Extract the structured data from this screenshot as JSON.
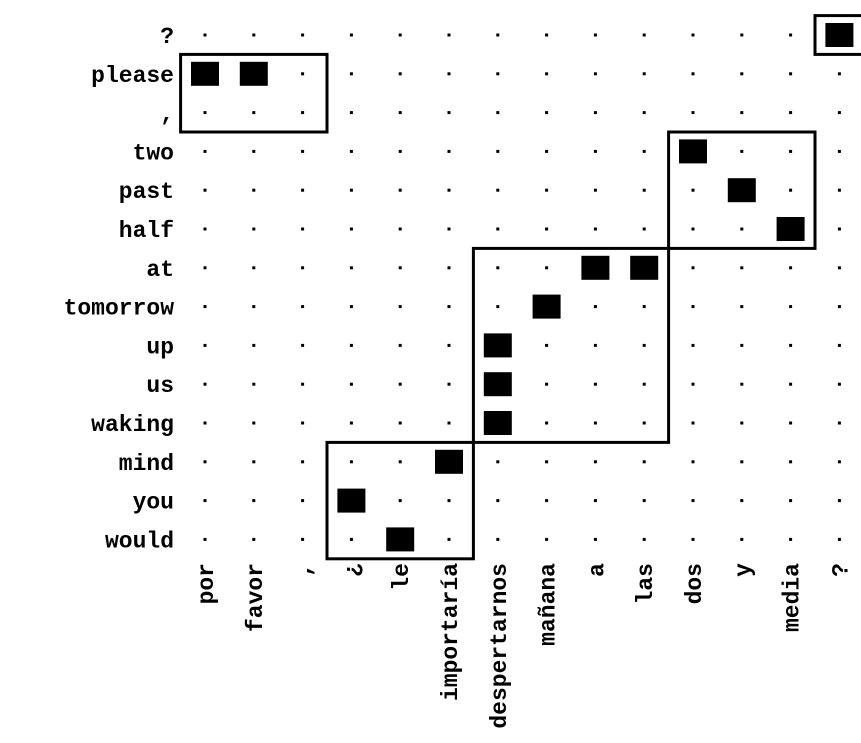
{
  "diagram": {
    "source_words": [
      "por",
      "favor",
      ",",
      "¿",
      "le",
      "importaría",
      "despertarnos",
      "mañana",
      "a",
      "las",
      "dos",
      "y",
      "media",
      "?"
    ],
    "target_words": [
      "?",
      "please",
      ",",
      "two",
      "past",
      "half",
      "at",
      "tomorrow",
      "up",
      "us",
      "waking",
      "mind",
      "you",
      "would"
    ],
    "alignments": [
      {
        "target": "?",
        "source": "?"
      },
      {
        "target": "please",
        "source": "por"
      },
      {
        "target": "please",
        "source": "favor"
      },
      {
        "target": "two",
        "source": "dos"
      },
      {
        "target": "past",
        "source": "y"
      },
      {
        "target": "half",
        "source": "media"
      },
      {
        "target": "at",
        "source": "a"
      },
      {
        "target": "at",
        "source": "las"
      },
      {
        "target": "tomorrow",
        "source": "mañana"
      },
      {
        "target": "up",
        "source": "despertarnos"
      },
      {
        "target": "us",
        "source": "despertarnos"
      },
      {
        "target": "waking",
        "source": "despertarnos"
      },
      {
        "target": "mind",
        "source": "importaría"
      },
      {
        "target": "you",
        "source": "¿"
      },
      {
        "target": "would",
        "source": "le"
      }
    ],
    "phrase_blocks": [
      {
        "source_from": "por",
        "source_to": ",",
        "target_from": "please",
        "target_to": ","
      },
      {
        "source_from": "dos",
        "source_to": "media",
        "target_from": "two",
        "target_to": "half"
      },
      {
        "source_from": "despertarnos",
        "source_to": "las",
        "target_from": "at",
        "target_to": "waking"
      },
      {
        "source_from": "¿",
        "source_to": "importaría",
        "target_from": "mind",
        "target_to": "would"
      },
      {
        "source_from": "?",
        "source_to": "?",
        "target_from": "?",
        "target_to": "?"
      }
    ]
  }
}
